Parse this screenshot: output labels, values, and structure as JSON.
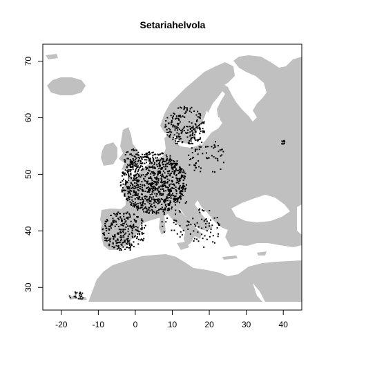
{
  "chart_data": {
    "type": "scatter",
    "title": "Setariahelvola",
    "xlabel": "",
    "ylabel": "",
    "xlim": [
      -25,
      45
    ],
    "ylim": [
      26,
      73
    ],
    "x_ticks": [
      -20,
      -10,
      0,
      10,
      20,
      30,
      40
    ],
    "y_ticks": [
      30,
      40,
      50,
      60,
      70
    ],
    "x_tick_labels": [
      "-20",
      "-10",
      "0",
      "10",
      "20",
      "30",
      "40"
    ],
    "y_tick_labels": [
      "30",
      "40",
      "50",
      "60",
      "70"
    ],
    "grid": false,
    "land_color": "#c0c0c0",
    "sea_color": "#ffffff",
    "point_color": "#000000",
    "occurrence_clusters": [
      {
        "region": "Iberia",
        "lon": [
          -9,
          3
        ],
        "lat": [
          36.5,
          43.5
        ],
        "count": 260
      },
      {
        "region": "France-Benelux-Germany",
        "lon": [
          -4,
          14
        ],
        "lat": [
          43,
          54
        ],
        "count": 900
      },
      {
        "region": "Great Britain",
        "lon": [
          -3,
          1.5
        ],
        "lat": [
          51,
          54.5
        ],
        "count": 40
      },
      {
        "region": "Denmark-Scandinavia",
        "lon": [
          8,
          19
        ],
        "lat": [
          55,
          62
        ],
        "count": 200
      },
      {
        "region": "Baltics-Poland",
        "lon": [
          14,
          25
        ],
        "lat": [
          50,
          56
        ],
        "count": 60
      },
      {
        "region": "Italy",
        "lon": [
          7,
          16
        ],
        "lat": [
          38,
          46
        ],
        "count": 35
      },
      {
        "region": "Balkans-Greece",
        "lon": [
          14,
          23
        ],
        "lat": [
          37,
          44
        ],
        "count": 55
      },
      {
        "region": "Canary Islands",
        "lon": [
          -18,
          -13.5
        ],
        "lat": [
          27.8,
          29.2
        ],
        "count": 20
      },
      {
        "region": "Urals",
        "lon": [
          39.5,
          40.5
        ],
        "lat": [
          55.2,
          56
        ],
        "count": 8
      }
    ]
  }
}
